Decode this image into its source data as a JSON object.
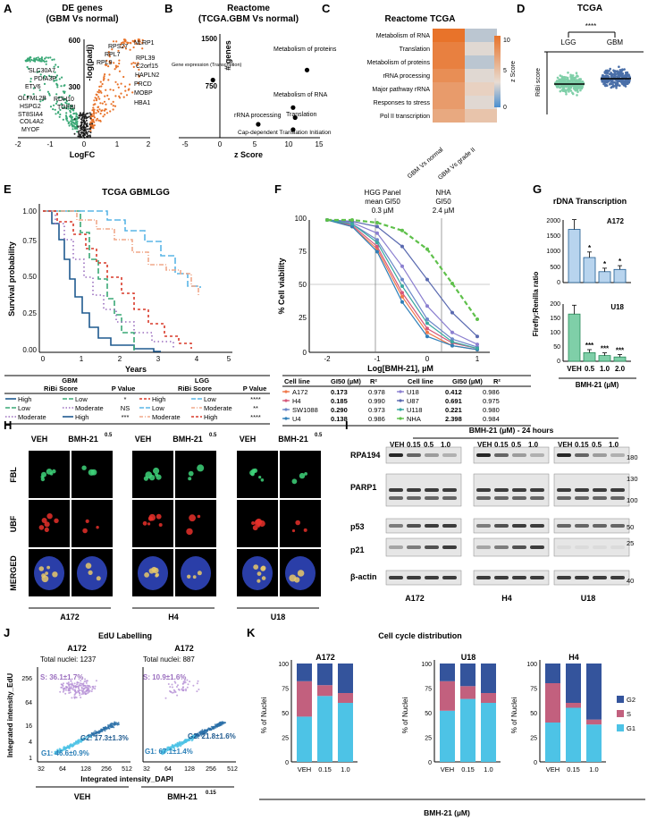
{
  "colors": {
    "green": "#3aa876",
    "orange": "#e8732a",
    "blue": "#1f5a8f",
    "purple": "#9b6fbf",
    "lightblue": "#9ec8e8",
    "pink": "#c2607e",
    "cyan": "#4dc3e6",
    "navy": "#34549c",
    "mint": "#7fcfa8",
    "red": "#d83a2a"
  },
  "panels": {
    "A": {
      "letter": "A",
      "title": "DE genes",
      "subtitle": "(GBM Vs normal)",
      "xlabel": "LogFC",
      "ylabel": "-log(padj)",
      "xticks": [
        "-2",
        "-1",
        "0",
        "1",
        "2"
      ],
      "yticks": [
        "300",
        "600"
      ],
      "labels_left": [
        "SLC30A7",
        "PDIA3P",
        "ETV6",
        "OLFML2B",
        "RDH10",
        "HSPG2",
        "TGFBI",
        "ST8SIA4",
        "COL4A2",
        "MYOF"
      ],
      "labels_right": [
        "RPS27",
        "NLRP1",
        "RPL7",
        "RPL9",
        "RPL39",
        "C2orf15",
        "HAPLN2",
        "PRCD",
        "MOBP",
        "HBA1"
      ]
    },
    "B": {
      "letter": "B",
      "title": "Reactome",
      "subtitle": "(TCGA.GBM Vs normal)",
      "xlabel": "z Score",
      "ylabel": "# genes",
      "xticks": [
        "-5",
        "0",
        "5",
        "10",
        "15"
      ],
      "yticks": [
        "750",
        "1500"
      ],
      "points": [
        {
          "label": "Gene expression (Transcription)",
          "z": -1,
          "n": 860
        },
        {
          "label": "Metabolism of proteins",
          "z": 12.5,
          "n": 1010
        },
        {
          "label": "Metabolism of RNA",
          "z": 10.5,
          "n": 450
        },
        {
          "label": "Translation",
          "z": 10.8,
          "n": 300
        },
        {
          "label": "rRNA processing",
          "z": 5.5,
          "n": 200
        },
        {
          "label": "Cap-dependent Translation Initiation",
          "z": 10.5,
          "n": 120
        }
      ]
    },
    "C": {
      "letter": "C",
      "title": "Reactome TCGA",
      "rows": [
        "Metabolism of RNA",
        "Translation",
        "Metabolism of proteins",
        "rRNA processing",
        "Major pathway rRNA",
        "Responses to stress",
        "Pol II transcription"
      ],
      "cols": [
        "GBM Vs normal",
        "GBM Vs grade II"
      ],
      "values": [
        [
          12,
          3
        ],
        [
          11,
          4
        ],
        [
          11,
          3
        ],
        [
          10,
          4
        ],
        [
          9,
          5
        ],
        [
          9,
          4
        ],
        [
          8,
          6
        ]
      ],
      "cbar_label": "z Score",
      "cbar_ticks": [
        "0",
        "5",
        "10"
      ]
    },
    "D": {
      "letter": "D",
      "title": "TCGA",
      "groups": [
        "LGG",
        "GBM"
      ],
      "sig": "****",
      "ylabel": "RiBi score"
    },
    "E": {
      "letter": "E",
      "title": "TCGA GBMLGG",
      "xlabel": "Years",
      "ylabel": "Survival probability",
      "xticks": [
        "0",
        "1",
        "2",
        "3",
        "4",
        "5"
      ],
      "yticks": [
        "0.00",
        "0.25",
        "0.50",
        "0.75",
        "1.00"
      ],
      "legend": {
        "gbm_title": "GBM",
        "lgg_title": "LGG",
        "score_title": "RiBi Score",
        "pval_title": "P Value",
        "gbm": [
          {
            "label": "High",
            "p": "*"
          },
          {
            "label": "Low",
            "p": "NS"
          },
          {
            "label": "Moderate",
            "p": "***"
          }
        ],
        "gbm_right": [
          "Low",
          "Moderate",
          "High"
        ],
        "lgg": [
          {
            "label": "High",
            "p": "****"
          },
          {
            "label": "Low",
            "p": "**"
          },
          {
            "label": "Moderate",
            "p": "****"
          }
        ],
        "lgg_right": [
          "Low",
          "Moderate",
          "High"
        ]
      }
    },
    "F": {
      "letter": "F",
      "xlabel": "Log[BMH-21], µM",
      "ylabel": "% Cell viability",
      "xticks": [
        "-2",
        "-1",
        "0",
        "1"
      ],
      "yticks": [
        "0",
        "25",
        "50",
        "75",
        "100"
      ],
      "ann1": [
        "HGG Panel",
        "mean GI50",
        "0.3 µM"
      ],
      "ann2": [
        "NHA",
        "GI50",
        "2.4 µM"
      ],
      "table_headers": [
        "Cell line",
        "GI50 (µM)",
        "R²",
        "Cell line",
        "GI50 (µM)",
        "R²"
      ],
      "table_left": [
        {
          "name": "A172",
          "gi": "0.173",
          "r": "0.978"
        },
        {
          "name": "H4",
          "gi": "0.185",
          "r": "0.990"
        },
        {
          "name": "SW1088",
          "gi": "0.290",
          "r": "0.973"
        },
        {
          "name": "U4",
          "gi": "0.138",
          "r": "0.986"
        }
      ],
      "table_right": [
        {
          "name": "U18",
          "gi": "0.412",
          "r": "0.986"
        },
        {
          "name": "U87",
          "gi": "0.691",
          "r": "0.975"
        },
        {
          "name": "U118",
          "gi": "0.221",
          "r": "0.980"
        },
        {
          "name": "NHA",
          "gi": "2.398",
          "r": "0.984"
        }
      ]
    },
    "G": {
      "letter": "G",
      "title": "rDNA Transcription",
      "ylabel": "Firefly:Renilla ratio",
      "xlabel": "BMH-21 (µM)",
      "cats": [
        "VEH",
        "0.5",
        "1.0",
        "2.0"
      ],
      "top": {
        "name": "A172",
        "yticks": [
          "0",
          "500",
          "1000",
          "1500",
          "2000"
        ],
        "sig": [
          "",
          "*",
          "*",
          "*"
        ]
      },
      "bottom": {
        "name": "U18",
        "yticks": [
          "0",
          "50",
          "100",
          "150",
          "200"
        ],
        "sig": [
          "",
          "***",
          "***",
          "***"
        ]
      }
    },
    "H": {
      "letter": "H",
      "rows": [
        "FBL",
        "UBF",
        "MERGED"
      ],
      "col_labels": [
        "VEH",
        "BMH-21",
        "VEH",
        "BMH-21",
        "VEH",
        "BMH-21"
      ],
      "sup": "0.5",
      "cells": [
        "A172",
        "H4",
        "U18"
      ]
    },
    "I": {
      "letter": "I",
      "title": "BMH-21 (µM) - 24 hours",
      "doses": [
        "VEH",
        "0.15",
        "0.5",
        "1.0"
      ],
      "proteins": [
        "RPA194",
        "PARP1",
        "p53",
        "p21",
        "β-actin"
      ],
      "mw": [
        "180",
        "130",
        "100",
        "50",
        "25",
        "40"
      ],
      "cells": [
        "A172",
        "H4",
        "U18"
      ]
    },
    "J": {
      "letter": "J",
      "title": "EdU Labelling",
      "ylabel": "Integrated intensity_EdU",
      "xlabel": "Integrated intensity_DAPI",
      "xticks": [
        "32",
        "64",
        "128",
        "256",
        "512"
      ],
      "yticks": [
        "1",
        "4",
        "16",
        "64",
        "256"
      ],
      "left": {
        "cell": "A172",
        "total": "Total nuclei: 1237",
        "S": "S: 36.1±1.7%",
        "G2": "G2: 17.3±1.3%",
        "G1": "G1: 46.6±0.9%",
        "cond": "VEH"
      },
      "right": {
        "cell": "A172",
        "total": "Total nuclei: 887",
        "S": "S: 10.9±1.6%",
        "G2": "G2: 21.8±1.6%",
        "G1": "G1: 67.1±1.4%",
        "cond": "BMH-21",
        "sup": "0.15"
      }
    },
    "K": {
      "letter": "K",
      "title": "Cell cycle distribution",
      "ylabel": "% of Nuclei",
      "xlabel": "BMH-21 (µM)",
      "legend": [
        "G2",
        "S",
        "G1"
      ],
      "cats": [
        "VEH",
        "0.15",
        "1.0"
      ],
      "yticks": [
        "0",
        "25",
        "50",
        "75",
        "100"
      ]
    }
  },
  "chart_data": [
    {
      "type": "bar",
      "panel": "G-A172",
      "categories": [
        "VEH",
        "0.5",
        "1.0",
        "2.0"
      ],
      "values": [
        1700,
        800,
        350,
        420
      ],
      "ylim": [
        0,
        2000
      ]
    },
    {
      "type": "bar",
      "panel": "G-U18",
      "categories": [
        "VEH",
        "0.5",
        "1.0",
        "2.0"
      ],
      "values": [
        165,
        30,
        20,
        15
      ],
      "ylim": [
        0,
        200
      ]
    },
    {
      "type": "line",
      "panel": "F",
      "x": [
        -2,
        -1.5,
        -1,
        -0.5,
        0,
        0.5,
        1
      ],
      "series": [
        {
          "name": "A172",
          "values": [
            100,
            95,
            78,
            42,
            15,
            5,
            2
          ]
        },
        {
          "name": "H4",
          "values": [
            100,
            96,
            80,
            45,
            18,
            7,
            3
          ]
        },
        {
          "name": "SW1088",
          "values": [
            100,
            97,
            85,
            55,
            25,
            10,
            4
          ]
        },
        {
          "name": "U4",
          "values": [
            100,
            95,
            76,
            38,
            12,
            5,
            2
          ]
        },
        {
          "name": "U18",
          "values": [
            100,
            98,
            90,
            65,
            35,
            15,
            6
          ]
        },
        {
          "name": "U87",
          "values": [
            100,
            99,
            95,
            80,
            55,
            30,
            12
          ]
        },
        {
          "name": "U118",
          "values": [
            100,
            97,
            83,
            50,
            22,
            8,
            3
          ]
        },
        {
          "name": "NHA",
          "values": [
            100,
            100,
            98,
            92,
            78,
            52,
            25
          ]
        }
      ],
      "ylim": [
        0,
        110
      ]
    },
    {
      "type": "bar",
      "panel": "K",
      "stacked": true,
      "groups": [
        {
          "name": "A172",
          "categories": [
            "VEH",
            "0.15",
            "1.0"
          ],
          "G1": [
            46,
            67,
            60
          ],
          "S": [
            36,
            11,
            10
          ],
          "G2": [
            18,
            22,
            30
          ]
        },
        {
          "name": "U18",
          "categories": [
            "VEH",
            "0.15",
            "1.0"
          ],
          "G1": [
            52,
            64,
            60
          ],
          "S": [
            30,
            13,
            10
          ],
          "G2": [
            18,
            23,
            30
          ]
        },
        {
          "name": "H4",
          "categories": [
            "VEH",
            "0.15",
            "1.0"
          ],
          "G1": [
            40,
            55,
            38
          ],
          "S": [
            40,
            5,
            5
          ],
          "G2": [
            20,
            40,
            57
          ]
        }
      ]
    }
  ]
}
